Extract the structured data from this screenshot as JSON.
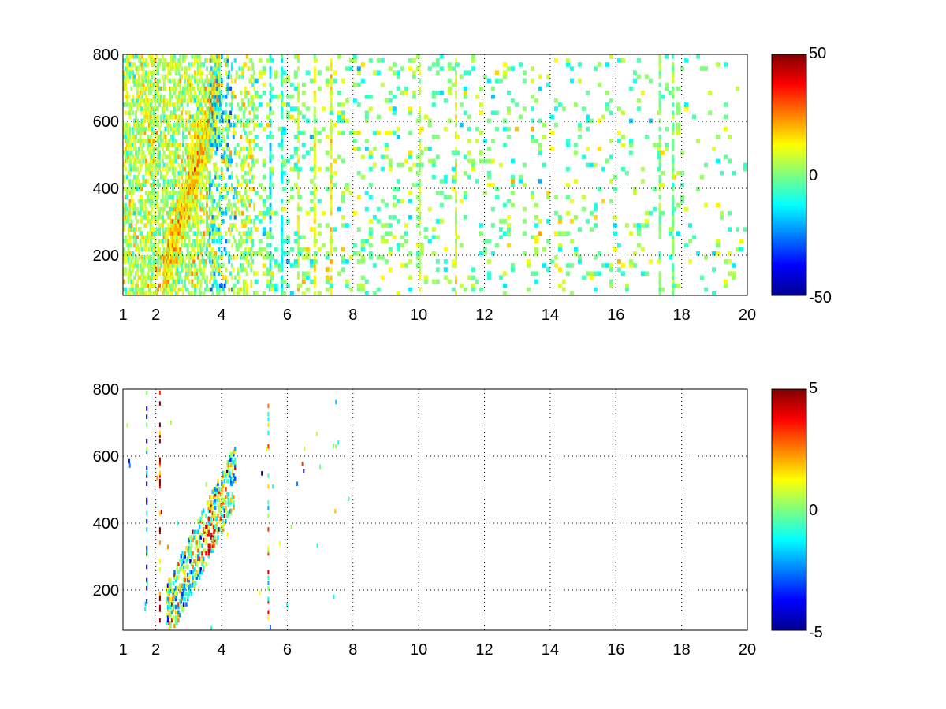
{
  "chart_data": [
    {
      "type": "heatmap",
      "xlim": [
        1,
        20
      ],
      "ylim": [
        80,
        800
      ],
      "xticks": [
        "1",
        "2",
        "4",
        "6",
        "8",
        "10",
        "12",
        "14",
        "16",
        "18",
        "20"
      ],
      "yticks": [
        "200",
        "400",
        "600",
        "800"
      ],
      "grid": "on (dotted, at major ticks)",
      "colorbar": {
        "min": -50,
        "max": 50,
        "ticks": [
          "50",
          "0",
          "-50"
        ],
        "colormap": "jet"
      },
      "title": "",
      "xlabel": "",
      "ylabel": ""
    },
    {
      "type": "heatmap",
      "xlim": [
        1,
        20
      ],
      "ylim": [
        80,
        800
      ],
      "xticks": [
        "1",
        "2",
        "4",
        "6",
        "8",
        "10",
        "12",
        "14",
        "16",
        "18",
        "20"
      ],
      "yticks": [
        "200",
        "400",
        "600",
        "800"
      ],
      "grid": "on (dotted, at major ticks)",
      "colorbar": {
        "min": -5,
        "max": 5,
        "ticks": [
          "5",
          "0",
          "-5"
        ],
        "colormap": "jet"
      },
      "title": "",
      "xlabel": "",
      "ylabel": ""
    }
  ]
}
